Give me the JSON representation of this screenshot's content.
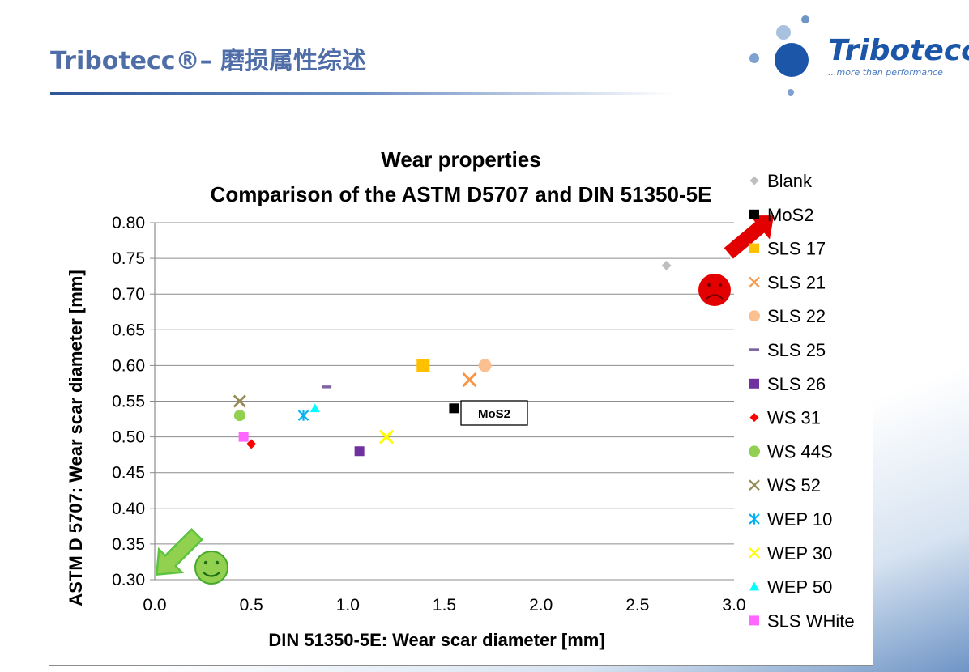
{
  "slide": {
    "title": "Tribotecc®– 磨损属性综述"
  },
  "logo": {
    "name": "Tribotecc",
    "tagline": "...more than performance"
  },
  "chart_data": {
    "type": "scatter",
    "title_lines": [
      "Wear properties",
      "Comparison of the ASTM D5707 and DIN 51350-5E"
    ],
    "xlabel": "DIN 51350-5E: Wear scar diameter [mm]",
    "ylabel": "ASTM D 5707: Wear scar diameter [mm]",
    "xlim": [
      0.0,
      3.0
    ],
    "ylim": [
      0.3,
      0.8
    ],
    "xticks": [
      "0.0",
      "0.5",
      "1.0",
      "1.5",
      "2.0",
      "2.5",
      "3.0"
    ],
    "yticks": [
      "0.80",
      "0.75",
      "0.70",
      "0.65",
      "0.60",
      "0.55",
      "0.50",
      "0.45",
      "0.40",
      "0.35",
      "0.30"
    ],
    "grid": "horizontal",
    "legend_position": "right",
    "series": [
      {
        "name": "Blank",
        "x": 2.65,
        "y": 0.74,
        "marker": "diamond",
        "color": "#bfbfbf"
      },
      {
        "name": "MoS2",
        "x": 1.55,
        "y": 0.54,
        "marker": "square",
        "color": "#000000"
      },
      {
        "name": "SLS 17",
        "x": 1.39,
        "y": 0.6,
        "marker": "square",
        "color": "#ffc000"
      },
      {
        "name": "SLS 21",
        "x": 1.63,
        "y": 0.58,
        "marker": "x",
        "color": "#f79646"
      },
      {
        "name": "SLS 22",
        "x": 1.71,
        "y": 0.6,
        "marker": "circle",
        "color": "#fac090"
      },
      {
        "name": "SLS 25",
        "x": 0.89,
        "y": 0.57,
        "marker": "dash",
        "color": "#8064a2"
      },
      {
        "name": "SLS 26",
        "x": 1.06,
        "y": 0.48,
        "marker": "square",
        "color": "#7030a0"
      },
      {
        "name": "WS 31",
        "x": 0.5,
        "y": 0.49,
        "marker": "diamond",
        "color": "#ff0000"
      },
      {
        "name": "WS 44S",
        "x": 0.44,
        "y": 0.53,
        "marker": "circle",
        "color": "#92d050"
      },
      {
        "name": "WS 52",
        "x": 0.44,
        "y": 0.55,
        "marker": "x",
        "color": "#948a54"
      },
      {
        "name": "WEP 10",
        "x": 0.77,
        "y": 0.53,
        "marker": "star",
        "color": "#00b0f0"
      },
      {
        "name": "WEP 30",
        "x": 1.2,
        "y": 0.5,
        "marker": "x",
        "color": "#ffff00"
      },
      {
        "name": "WEP 50",
        "x": 0.83,
        "y": 0.54,
        "marker": "triangle",
        "color": "#00ffff"
      },
      {
        "name": "SLS WHite",
        "x": 0.46,
        "y": 0.5,
        "marker": "square",
        "color": "#ff66ff"
      }
    ],
    "annotations": [
      {
        "text": "MoS2",
        "near_series": "MoS2"
      }
    ],
    "decor": {
      "bad": {
        "icon": "sad-face-icon",
        "arrow": "red-arrow-up-right",
        "color": "#e30000"
      },
      "good": {
        "icon": "smiley-face-icon",
        "arrow": "green-arrow-down-left",
        "color": "#5cc440"
      }
    }
  }
}
